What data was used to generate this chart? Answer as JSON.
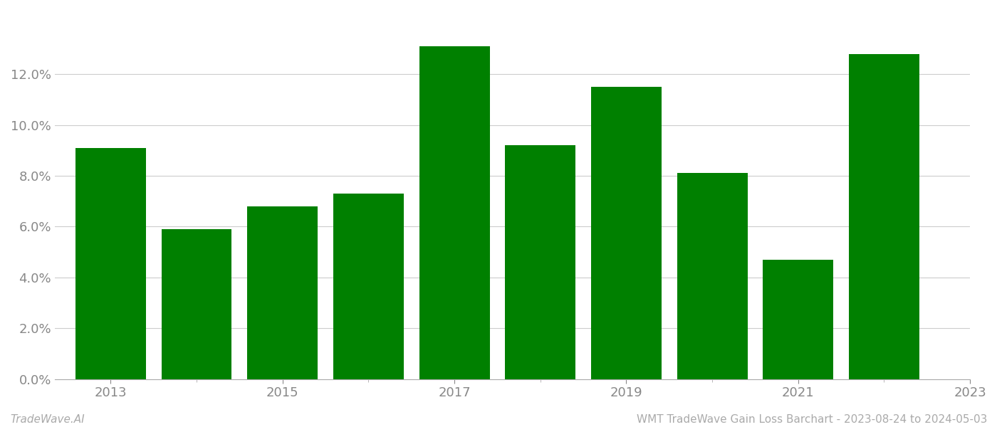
{
  "years": [
    2013,
    2014,
    2015,
    2016,
    2017,
    2018,
    2019,
    2020,
    2021,
    2022
  ],
  "values": [
    0.091,
    0.059,
    0.068,
    0.073,
    0.131,
    0.092,
    0.115,
    0.081,
    0.047,
    0.128
  ],
  "bar_color": "#008000",
  "background_color": "#ffffff",
  "grid_color": "#cccccc",
  "ylabel_color": "#888888",
  "xlabel_color": "#888888",
  "footer_left": "TradeWave.AI",
  "footer_right": "WMT TradeWave Gain Loss Barchart - 2023-08-24 to 2024-05-03",
  "ylim": [
    0,
    0.145
  ],
  "yticks": [
    0.0,
    0.02,
    0.04,
    0.06,
    0.08,
    0.1,
    0.12
  ],
  "xtick_labels": [
    "2013",
    "2015",
    "2017",
    "2019",
    "2021",
    "2023"
  ],
  "figsize": [
    14.0,
    6.0
  ],
  "dpi": 100
}
